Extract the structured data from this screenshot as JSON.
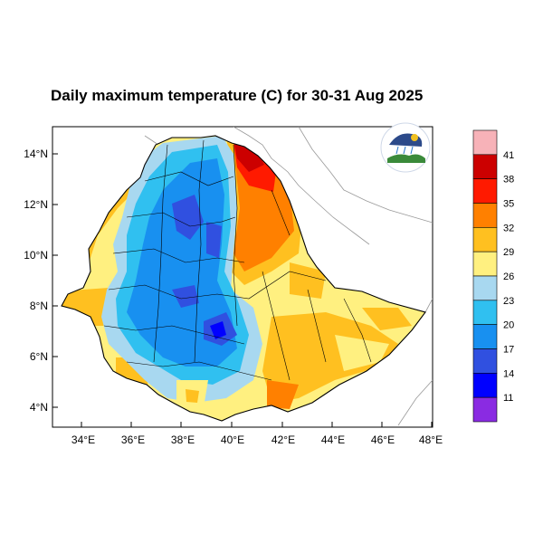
{
  "title": "Daily maximum temperature (C) for 30-31 Aug 2025",
  "map": {
    "lat_ticks": [
      "4°N",
      "6°N",
      "8°N",
      "10°N",
      "12°N",
      "14°N"
    ],
    "lon_ticks": [
      "34°E",
      "36°E",
      "38°E",
      "40°E",
      "42°E",
      "44°E",
      "46°E",
      "48°E"
    ],
    "lat_range": [
      3.2,
      14.9
    ],
    "lon_range": [
      33.0,
      48.2
    ]
  },
  "colorbar": {
    "labels": [
      "41",
      "38",
      "35",
      "32",
      "29",
      "26",
      "23",
      "20",
      "17",
      "14",
      "11"
    ],
    "colors": [
      "#f7b2b8",
      "#cc0000",
      "#ff1a00",
      "#ff8000",
      "#ffc020",
      "#fff080",
      "#a8d8f0",
      "#30c0f0",
      "#1890f0",
      "#3050e0",
      "#0000ff",
      "#8a2be2"
    ]
  },
  "logo": {
    "icon": "ethiopian-meteorology-institute-logo"
  }
}
